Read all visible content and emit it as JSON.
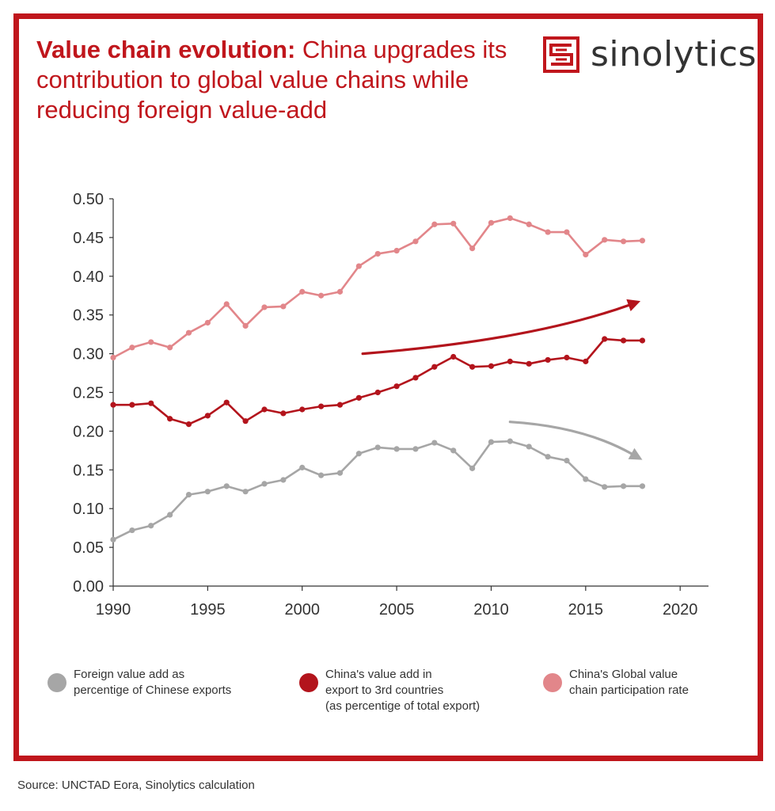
{
  "header": {
    "title_bold": "Value chain evolution:",
    "title_rest": " China upgrades its contribution to global value chains while reducing foreign value-add"
  },
  "logo": {
    "text": "sinolytics",
    "icon": "sinolytics-logo-icon"
  },
  "colors": {
    "frame": "#c0161c",
    "foreign": "#a6a6a6",
    "china_va": "#b3141c",
    "gvc": "#e2868a",
    "axis": "#333333"
  },
  "chart_data": {
    "type": "line",
    "title": "",
    "xlabel": "",
    "ylabel": "",
    "xlim": [
      1990,
      2021.5
    ],
    "ylim": [
      0,
      0.5
    ],
    "x_ticks": [
      "1990",
      "1995",
      "2000",
      "2005",
      "2010",
      "2015",
      "2020"
    ],
    "y_ticks": [
      "0.00",
      "0.05",
      "0.10",
      "0.15",
      "0.20",
      "0.25",
      "0.30",
      "0.35",
      "0.40",
      "0.45",
      "0.50"
    ],
    "grid": false,
    "legend_position": "bottom",
    "x": [
      1990,
      1991,
      1992,
      1993,
      1994,
      1995,
      1996,
      1997,
      1998,
      1999,
      2000,
      2001,
      2002,
      2003,
      2004,
      2005,
      2006,
      2007,
      2008,
      2009,
      2010,
      2011,
      2012,
      2013,
      2014,
      2015,
      2016,
      2017,
      2018
    ],
    "series": [
      {
        "name": "Foreign value add as\npercentige of Chinese exports",
        "color": "#a6a6a6",
        "values": [
          0.06,
          0.072,
          0.078,
          0.092,
          0.118,
          0.122,
          0.129,
          0.122,
          0.132,
          0.137,
          0.153,
          0.143,
          0.146,
          0.171,
          0.179,
          0.177,
          0.177,
          0.185,
          0.175,
          0.152,
          0.186,
          0.187,
          0.18,
          0.167,
          0.162,
          0.138,
          0.128,
          0.129,
          0.129
        ]
      },
      {
        "name": "China's value add in\nexport to 3rd countries\n(as percentige of total export)",
        "color": "#b3141c",
        "values": [
          0.234,
          0.234,
          0.236,
          0.216,
          0.209,
          0.22,
          0.237,
          0.213,
          0.228,
          0.223,
          0.228,
          0.232,
          0.234,
          0.243,
          0.25,
          0.258,
          0.269,
          0.283,
          0.296,
          0.283,
          0.284,
          0.29,
          0.287,
          0.292,
          0.295,
          0.29,
          0.319,
          0.317,
          0.317
        ]
      },
      {
        "name": "China's Global value\nchain participation rate",
        "color": "#e2868a",
        "values": [
          0.295,
          0.308,
          0.315,
          0.308,
          0.327,
          0.34,
          0.364,
          0.336,
          0.36,
          0.361,
          0.38,
          0.375,
          0.38,
          0.413,
          0.429,
          0.433,
          0.445,
          0.467,
          0.468,
          0.436,
          0.469,
          0.475,
          0.467,
          0.457,
          0.457,
          0.428,
          0.447,
          0.445,
          0.446
        ]
      }
    ],
    "annotations": [
      {
        "type": "arrow",
        "color": "#b3141c",
        "from": [
          2003.2,
          0.3
        ],
        "to": [
          2017.9,
          0.368
        ],
        "direction": "up"
      },
      {
        "type": "arrow",
        "color": "#a6a6a6",
        "from": [
          2011.0,
          0.212
        ],
        "to": [
          2018.0,
          0.163
        ],
        "direction": "down"
      }
    ]
  },
  "source": "Source: UNCTAD Eora, Sinolytics calculation"
}
